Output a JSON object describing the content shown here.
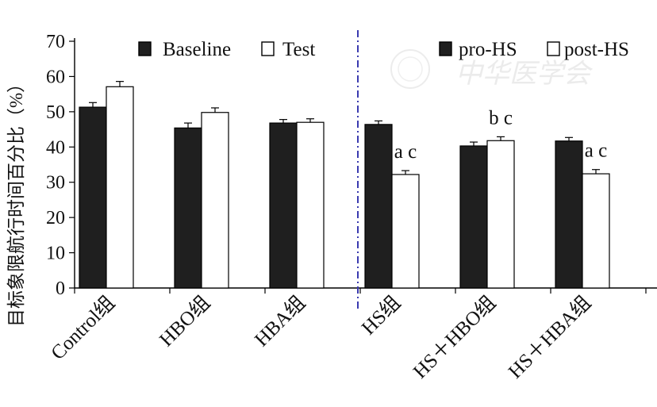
{
  "chart_data": {
    "type": "bar",
    "title": "",
    "xlabel": "",
    "ylabel": "目标象限航行时间百分比（%）",
    "ylim": [
      0,
      70
    ],
    "yticks": [
      0,
      10,
      20,
      30,
      40,
      50,
      60,
      70
    ],
    "grid": false,
    "categories": [
      "Control组",
      "HBO组",
      "HBA组",
      "HS组",
      "HS＋HBO组",
      "HS＋HBA组"
    ],
    "series": [
      {
        "name": "Baseline",
        "group": "left",
        "color": "#1f1f1f",
        "values": [
          51.3,
          45.4,
          46.8,
          null,
          null,
          null
        ],
        "errors": [
          1.3,
          1.4,
          1.0,
          null,
          null,
          null
        ]
      },
      {
        "name": "Test",
        "group": "left",
        "color": "#ffffff",
        "values": [
          57.1,
          49.8,
          47.0,
          null,
          null,
          null
        ],
        "errors": [
          1.5,
          1.3,
          1.0,
          null,
          null,
          null
        ]
      },
      {
        "name": "pro-HS",
        "group": "right",
        "color": "#1f1f1f",
        "values": [
          null,
          null,
          null,
          46.4,
          40.3,
          41.7
        ],
        "errors": [
          null,
          null,
          null,
          1.0,
          1.1,
          1.0
        ]
      },
      {
        "name": "post-HS",
        "group": "right",
        "color": "#ffffff",
        "values": [
          null,
          null,
          null,
          32.2,
          41.8,
          32.4
        ],
        "errors": [
          null,
          null,
          null,
          1.1,
          1.1,
          1.2
        ]
      }
    ],
    "annotations": [
      {
        "category": "HS组",
        "series": "post-HS",
        "text": "a c"
      },
      {
        "category": "HS＋HBO组",
        "series": "post-HS",
        "text": "b c"
      },
      {
        "category": "HS＋HBA组",
        "series": "post-HS",
        "text": "a c"
      }
    ],
    "legend_left": "top-left",
    "legend_right": "top-right",
    "divider": "dash-dot vertical line between HBA组 and HS组"
  },
  "watermark": {
    "text": "中华医学会"
  }
}
